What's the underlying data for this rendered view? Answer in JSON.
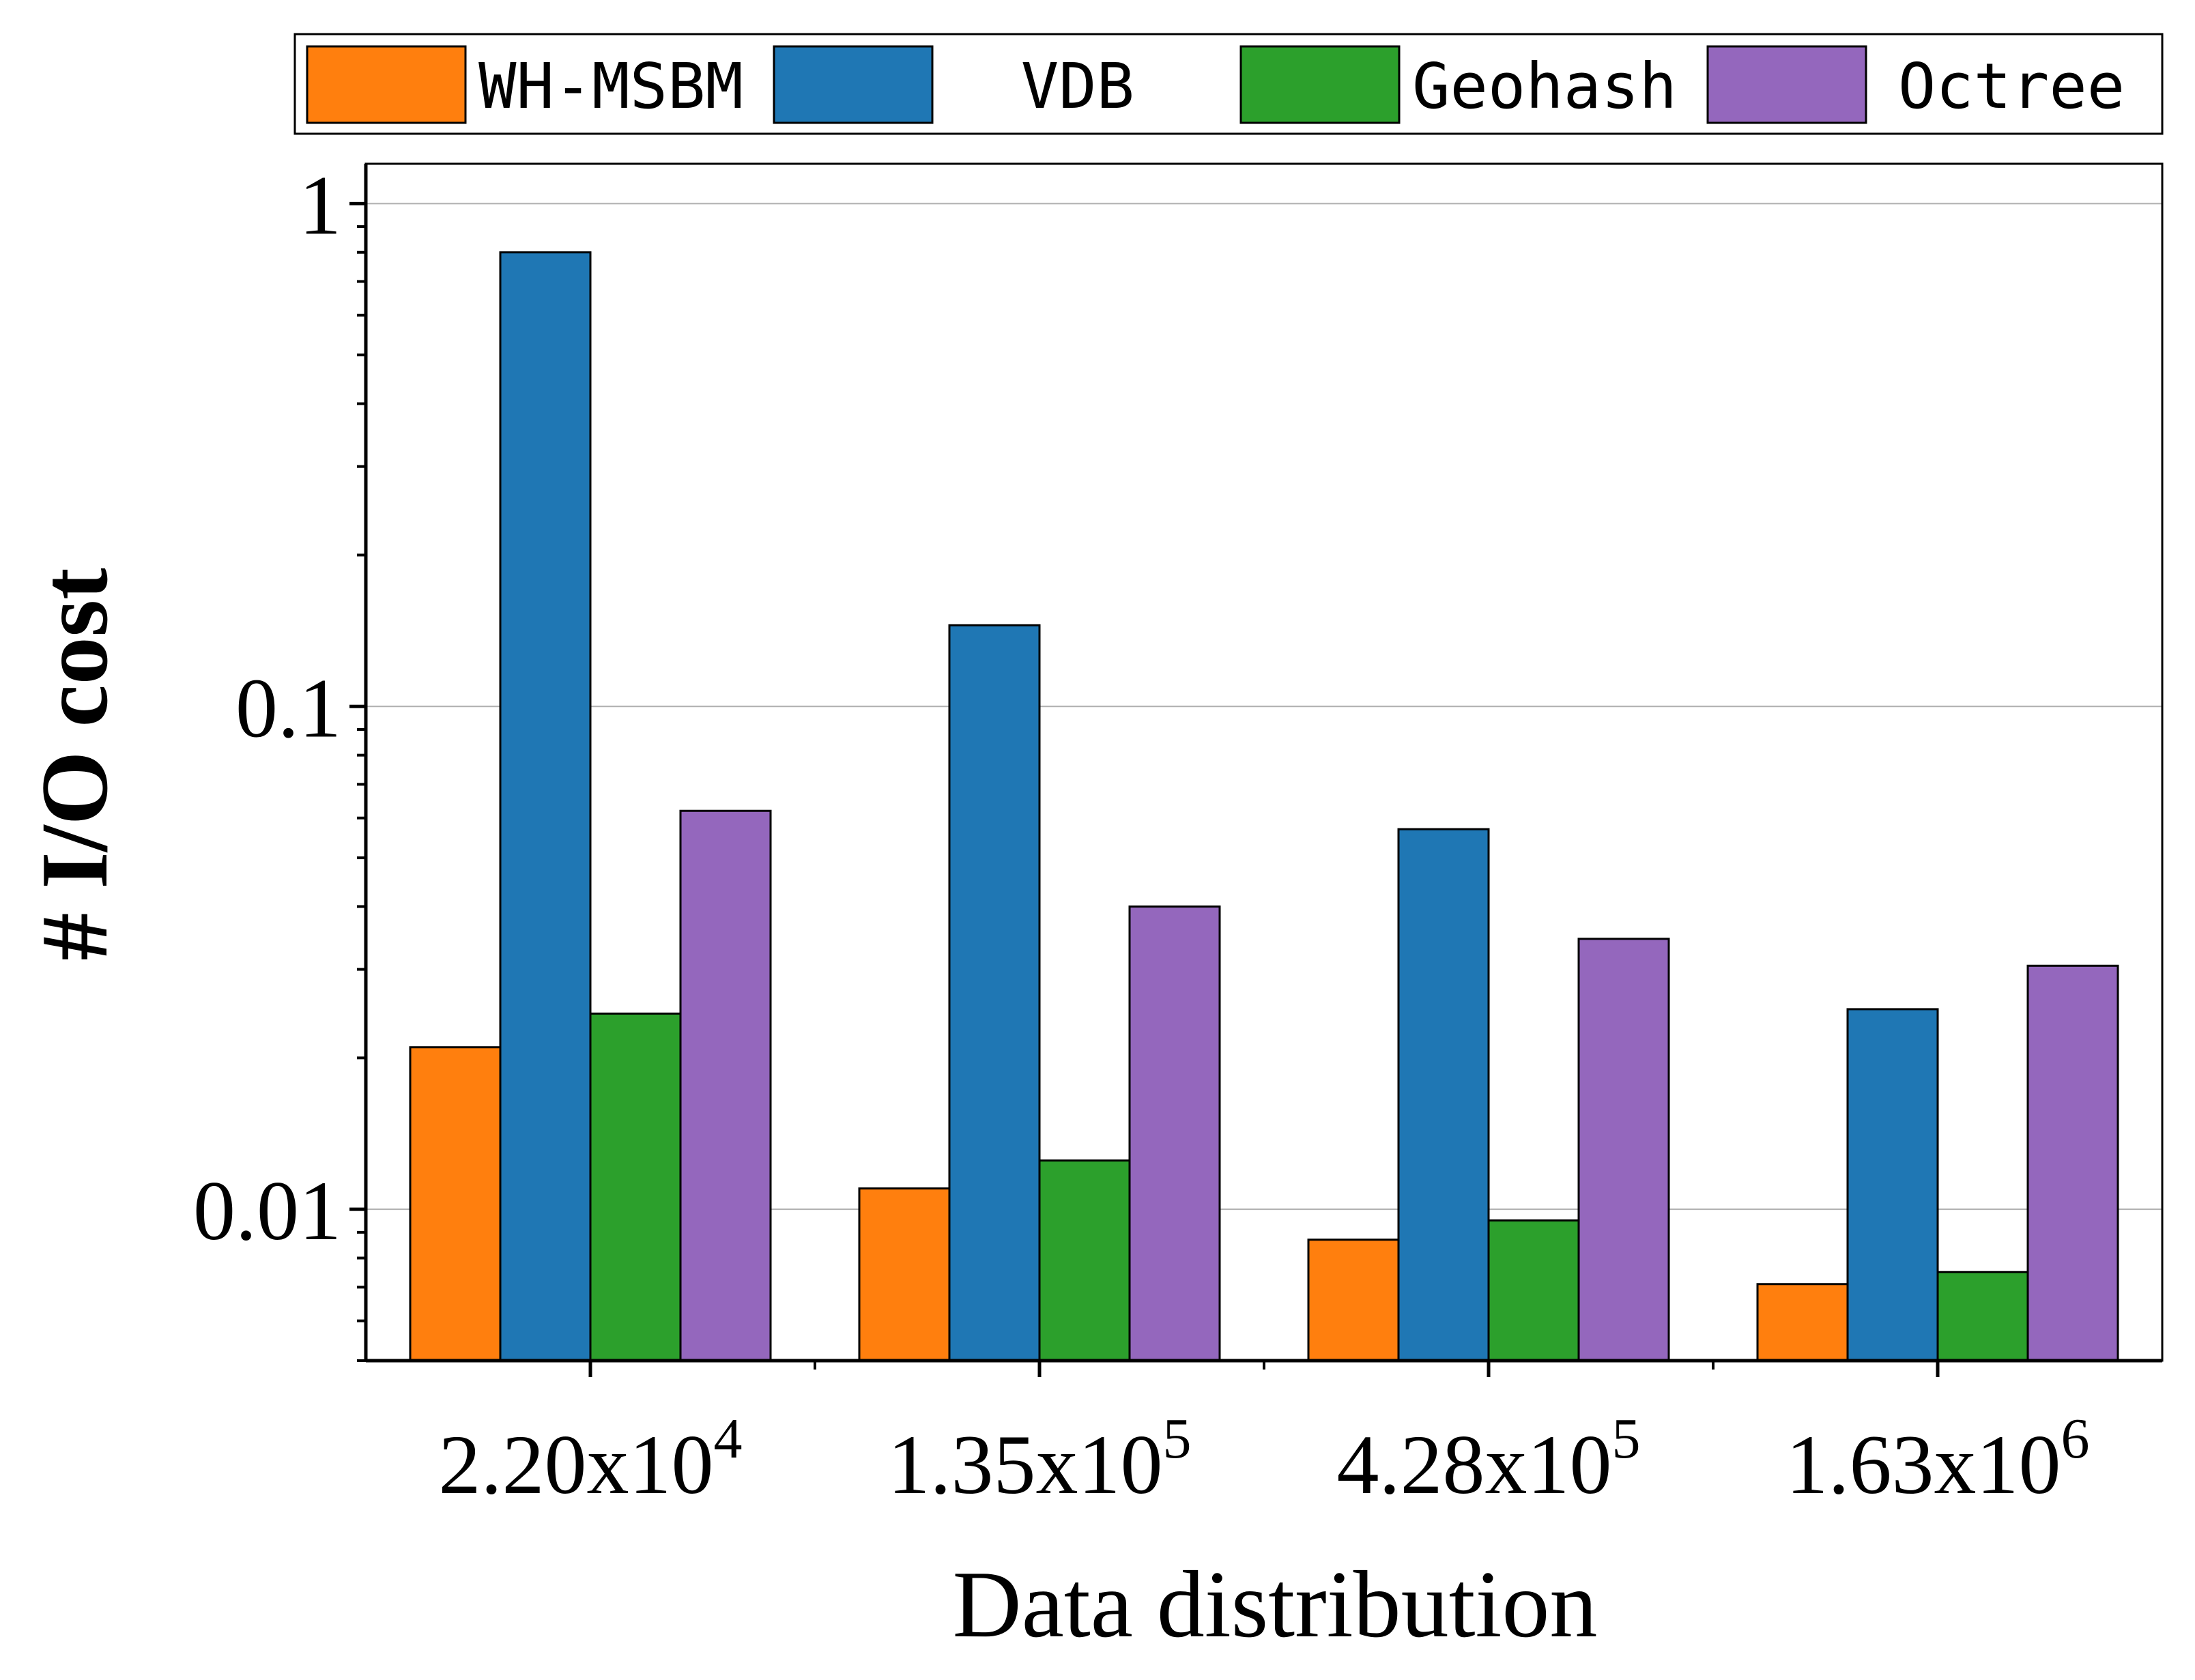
{
  "chart_data": {
    "type": "bar",
    "xlabel": "Data distribution",
    "ylabel": "# I/O cost",
    "yscale": "log",
    "ylim": [
      0.005,
      1.2
    ],
    "grid": true,
    "legend_position": "top",
    "categories": [
      {
        "base": "2.20x10",
        "exp": "4"
      },
      {
        "base": "1.35x10",
        "exp": "5"
      },
      {
        "base": "4.28x10",
        "exp": "5"
      },
      {
        "base": "1.63x10",
        "exp": "6"
      }
    ],
    "yticks": [
      "0.01",
      "0.1",
      "1"
    ],
    "series": [
      {
        "name": "WH-MSBM",
        "color": "#ff7f0e",
        "values": [
          0.021,
          0.011,
          0.0087,
          0.0071
        ]
      },
      {
        "name": "VDB",
        "color": "#1f77b4",
        "values": [
          0.8,
          0.145,
          0.057,
          0.025
        ]
      },
      {
        "name": "Geohash",
        "color": "#2ca02c",
        "values": [
          0.0245,
          0.0125,
          0.0095,
          0.0075
        ]
      },
      {
        "name": "Octree",
        "color": "#9467bd",
        "values": [
          0.062,
          0.04,
          0.0345,
          0.0305
        ]
      }
    ]
  }
}
